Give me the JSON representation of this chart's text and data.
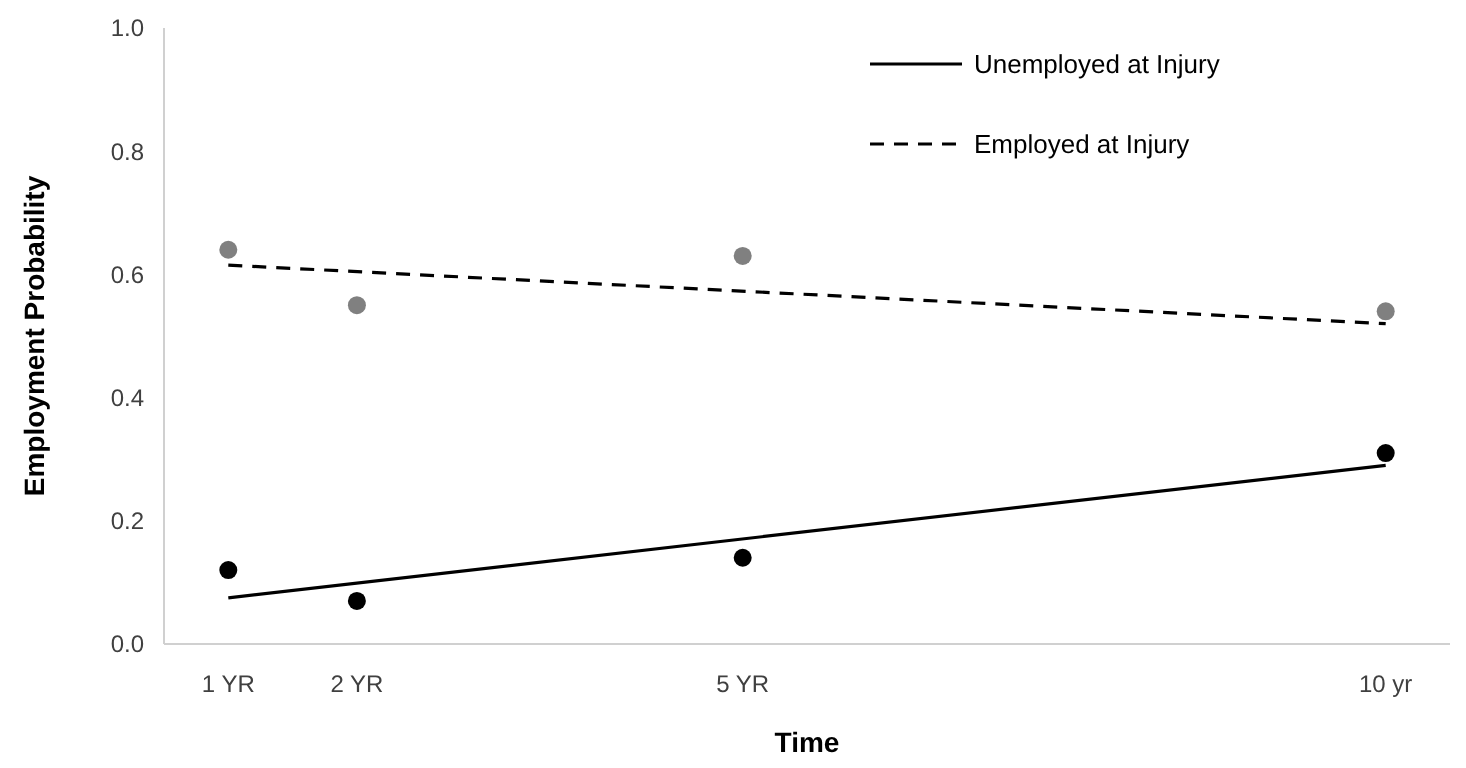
{
  "chart_data": {
    "type": "scatter",
    "xlabel": "Time",
    "ylabel": "Employment Probability",
    "xlim": [
      0.5,
      10.5
    ],
    "xticks": [
      {
        "value": 1,
        "label": "1 YR"
      },
      {
        "value": 2,
        "label": "2 YR"
      },
      {
        "value": 5,
        "label": "5 YR"
      },
      {
        "value": 10,
        "label": "10 yr"
      }
    ],
    "ylim": [
      0,
      1
    ],
    "yticks": [
      {
        "value": 0,
        "label": "0.0"
      },
      0.2,
      0.4,
      0.6,
      0.8,
      {
        "value": 1,
        "label": "1.0"
      }
    ],
    "grid": false,
    "legend": "top right",
    "series": [
      {
        "color": "#000000",
        "x": [
          1,
          2,
          5,
          10
        ],
        "values": [
          0.12,
          0.07,
          0.14,
          0.31
        ],
        "marker": "circle"
      },
      {
        "color": "#808080",
        "x": [
          1,
          2,
          5,
          10
        ],
        "values": [
          0.64,
          0.55,
          0.63,
          0.54
        ],
        "marker": "circle"
      },
      {
        "type": "line",
        "name": "Unemployed at Injury",
        "color": "#000000",
        "x": [
          1,
          10
        ],
        "values": [
          0.075,
          0.29
        ],
        "line_style": "solid",
        "marker": "none"
      },
      {
        "type": "line",
        "name": "Employed at Injury",
        "color": "#000000",
        "x": [
          1,
          10
        ],
        "values": [
          0.615,
          0.52
        ],
        "line_style": "dashed",
        "marker": "none"
      }
    ]
  }
}
